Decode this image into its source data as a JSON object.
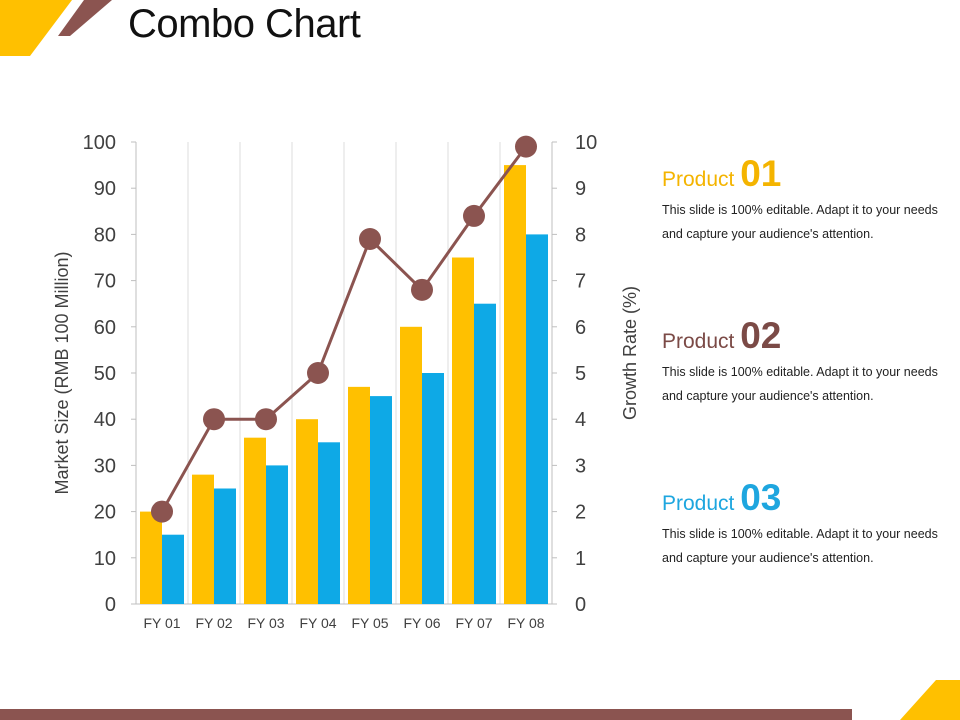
{
  "title": "Combo Chart",
  "colors": {
    "yellow": "#FFC000",
    "blue": "#0EA9E6",
    "brown": "#8B5450",
    "product1": "#F4B400",
    "product2": "#7B4A46",
    "product3": "#1EA6DF"
  },
  "chart_data": {
    "type": "bar",
    "categories": [
      "FY 01",
      "FY 02",
      "FY 03",
      "FY 04",
      "FY 05",
      "FY 06",
      "FY 07",
      "FY 08"
    ],
    "series": [
      {
        "type": "bar",
        "axis": "left",
        "color": "#FFC000",
        "values": [
          20,
          28,
          36,
          40,
          47,
          60,
          75,
          95
        ]
      },
      {
        "type": "bar",
        "axis": "left",
        "color": "#0EA9E6",
        "values": [
          15,
          25,
          30,
          35,
          45,
          50,
          65,
          80
        ]
      },
      {
        "type": "line",
        "axis": "right",
        "color": "#8B5450",
        "values": [
          2,
          4,
          4,
          5,
          7.9,
          6.8,
          8.4,
          9.9
        ]
      }
    ],
    "ylabel": "Market Size (RMB 100 Million)",
    "y2label": "Growth Rate (%)",
    "ylim": [
      0,
      100
    ],
    "y2lim": [
      0,
      10
    ],
    "yticks": [
      "0",
      "10",
      "20",
      "30",
      "40",
      "50",
      "60",
      "70",
      "80",
      "90",
      "100"
    ],
    "y2ticks": [
      "0",
      "1",
      "2",
      "3",
      "4",
      "5",
      "6",
      "7",
      "8",
      "9",
      "10"
    ],
    "grid": "vertical"
  },
  "products": [
    {
      "label": "Product",
      "number": "01",
      "desc": "This slide is 100% editable. Adapt it to your needs and capture your audience's attention."
    },
    {
      "label": "Product",
      "number": "02",
      "desc": "This slide is 100% editable. Adapt it to your needs and capture your audience's attention."
    },
    {
      "label": "Product",
      "number": "03",
      "desc": "This slide is 100% editable. Adapt it to your needs and capture your audience's attention."
    }
  ]
}
